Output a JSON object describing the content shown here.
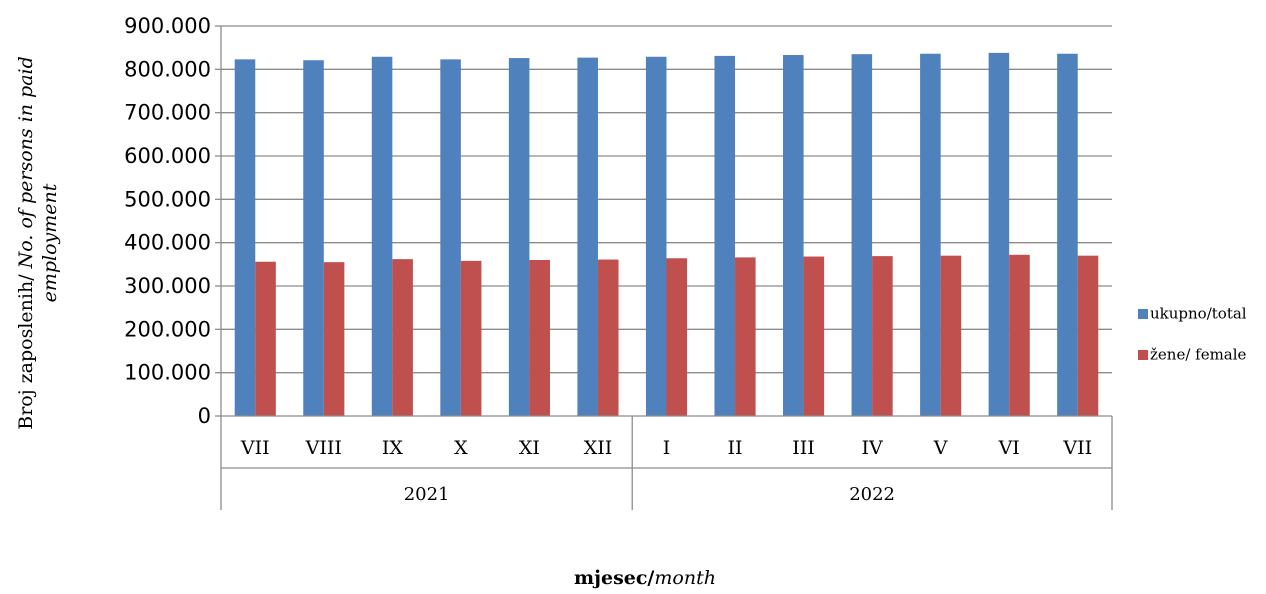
{
  "chart_data": {
    "type": "bar",
    "categories": [
      "VII",
      "VIII",
      "IX",
      "X",
      "XI",
      "XII",
      "I",
      "II",
      "III",
      "IV",
      "V",
      "VI",
      "VII"
    ],
    "groups": [
      {
        "label": "2021",
        "count": 6
      },
      {
        "label": "2022",
        "count": 7
      }
    ],
    "series": [
      {
        "name": "ukupno/total",
        "color": "#4F81BD",
        "values": [
          823000,
          821000,
          829000,
          823000,
          826000,
          827000,
          829000,
          831000,
          833000,
          835000,
          836000,
          838000,
          836000
        ]
      },
      {
        "name": "žene/ female",
        "color": "#C0504D",
        "values": [
          356000,
          355000,
          362000,
          358000,
          360000,
          361000,
          364000,
          366000,
          368000,
          369000,
          370000,
          372000,
          370000
        ]
      }
    ],
    "yticks": [
      "0",
      "100.000",
      "200.000",
      "300.000",
      "400.000",
      "500.000",
      "600.000",
      "700.000",
      "800.000",
      "900.000"
    ],
    "ylim": [
      0,
      900000
    ],
    "ystep": 100000,
    "grid": true,
    "legend_position": "right",
    "ylabel": {
      "bold": "Broj zaposlenih/",
      "italic": " No. of persons in paid employment"
    },
    "xlabel": {
      "bold": "mjesec/",
      "italic": "month"
    }
  }
}
